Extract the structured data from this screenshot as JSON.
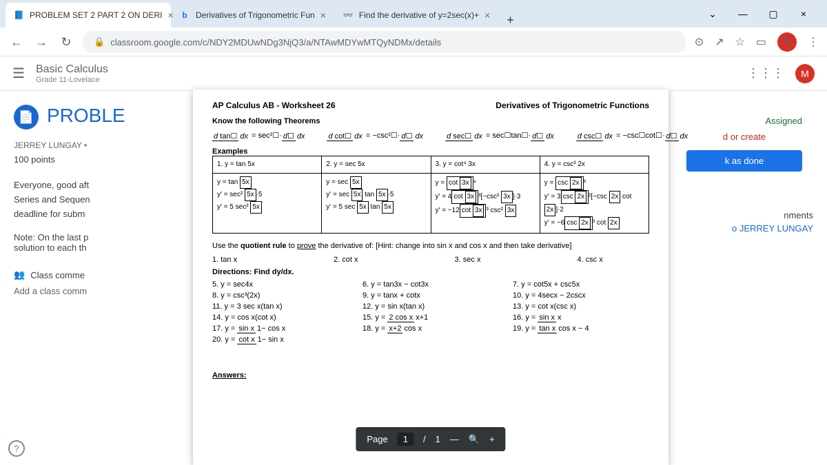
{
  "browser": {
    "tabs": [
      {
        "label": "PROBLEM SET 2 PART 2 ON DERI",
        "icon": "📘",
        "active": true
      },
      {
        "label": "Derivatives of Trigonometric Fun",
        "icon": "b",
        "active": false,
        "iconColor": "#1a73e8"
      },
      {
        "label": "Find the derivative of y=2sec(x)+",
        "icon": "🔍",
        "active": false
      }
    ],
    "url": "classroom.google.com/c/NDY2MDUwNDg3NjQ3/a/NTAwMDYwMTQyNDMx/details",
    "avatarLetter": "M"
  },
  "classroom": {
    "className": "Basic Calculus",
    "classSub": "Grade 11-Lovelace",
    "assignmentTitle": "PROBLE",
    "teacher": "JERREY LUNGAY •",
    "points": "100 points",
    "instr1": "Everyone, good aft",
    "instr2": "Series and Sequen",
    "instr3": "deadline for subm",
    "note1": "Note: On the last p",
    "note2": "solution to each th",
    "classComments": "Class comme",
    "addComment": "Add a class comm",
    "assigned": "Assigned",
    "create": "d or create",
    "markDone": "k as done",
    "privateComments": "nments",
    "toJerry": "o JERREY LUNGAY"
  },
  "worksheet": {
    "title": "AP Calculus AB - Worksheet 26",
    "subtitle": "Derivatives of Trigonometric Functions",
    "know": "Know the following Theorems",
    "examples": "Examples",
    "ex1h": "1. y = tan 5x",
    "ex2h": "2. y = sec 5x",
    "ex3h": "3. y = cot⁴ 3x",
    "ex4h": "4. y = csc³ 2x",
    "quotient": "Use the quotient rule to prove the derivative of: [Hint: change into sin x and cos x and then take derivative]",
    "q1": "1. tan x",
    "q2": "2. cot x",
    "q3": "3. sec x",
    "q4": "4. csc x",
    "directions": "Directions:  Find dy/dx.",
    "p5": "5. y = sec4x",
    "p6": "6.  y = tan3x − cot3x",
    "p7": "7.  y = cot5x + csc5x",
    "p8": "8.  y = csc³(2x)",
    "p9": "9.  y = tanx + cotx",
    "p10": "10. y = 4secx − 2cscx",
    "p11": "11. y = 3 sec x(tan x)",
    "p12": "12. y = sin x(tan x)",
    "p13": "13. y = cot x(csc x)",
    "p14": "14. y = cos x(cot x)",
    "p15a": "15. y =",
    "p15n": "2 cos x",
    "p15d": "x+1",
    "p16a": "16. y =",
    "p16n": "sin x",
    "p16d": "x",
    "p17a": "17. y =",
    "p17n": "sin x",
    "p17d": "1− cos x",
    "p18a": "18. y =",
    "p18n": "x+2",
    "p18d": "cos x",
    "p19a": "19. y =",
    "p19n": "tan x",
    "p19d": "cos x − 4",
    "p20a": "20. y =",
    "p20n": "cot x",
    "p20d": "1− sin x",
    "answers": "Answers:",
    "page": "Page",
    "pg1": "1",
    "slash": "/",
    "total": "1"
  }
}
